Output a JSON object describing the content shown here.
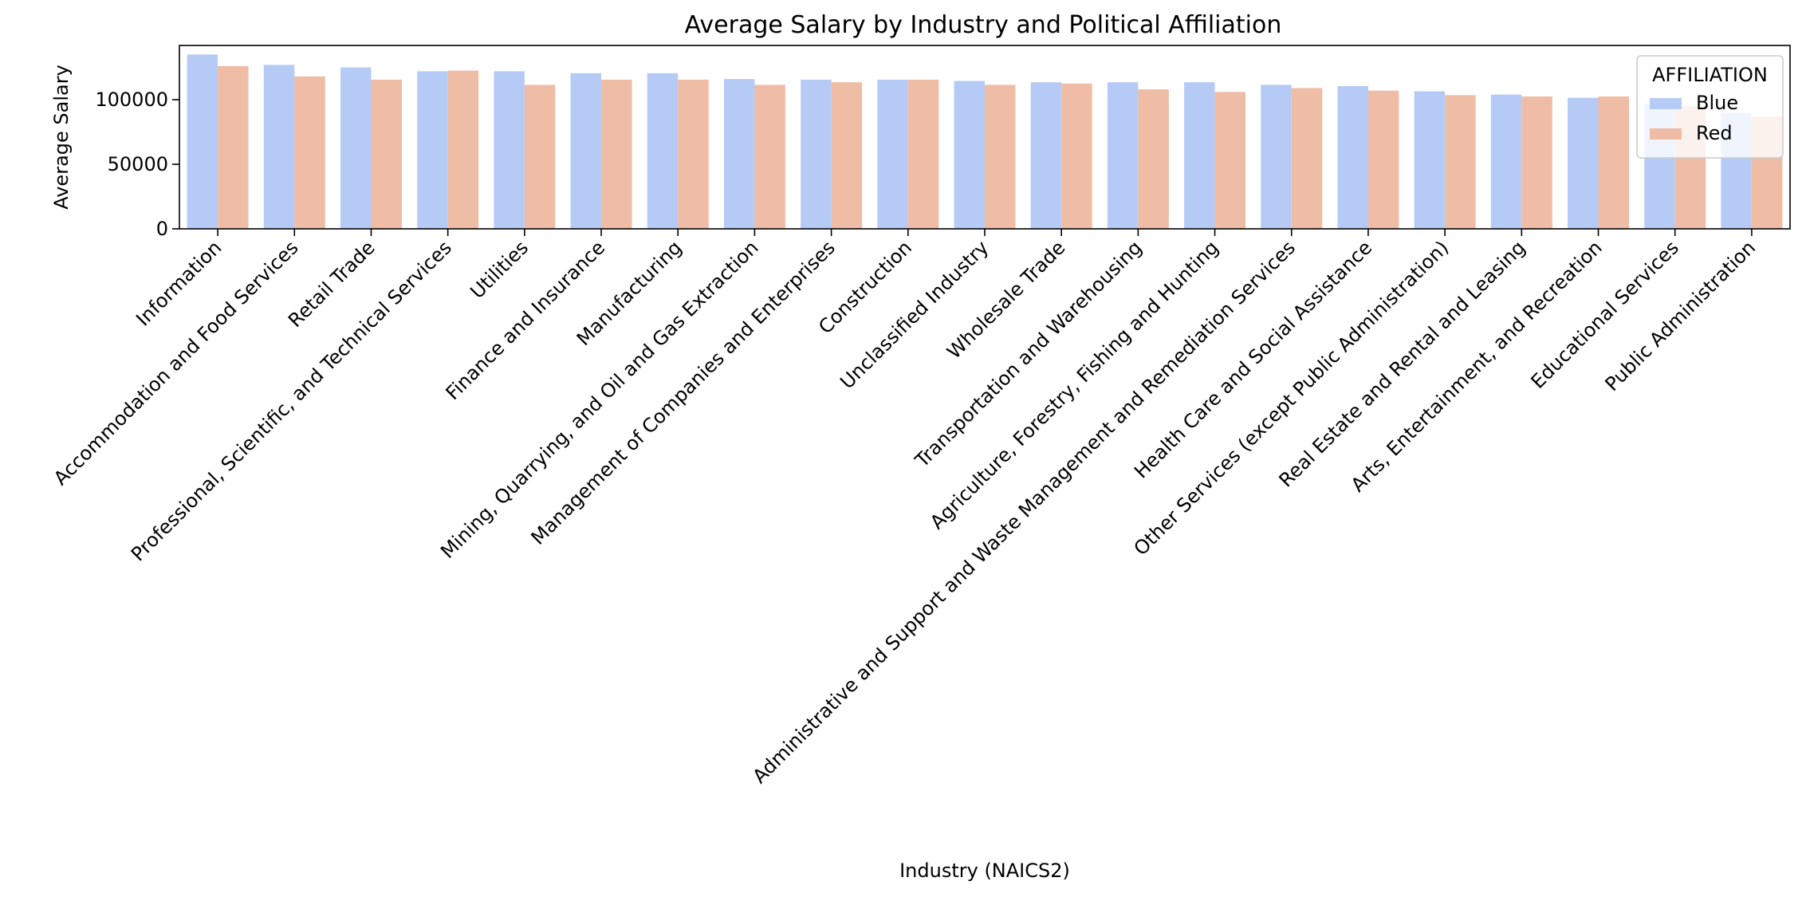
{
  "chart_data": {
    "type": "bar",
    "title": "Average Salary by Industry and Political Affiliation",
    "xlabel": "Industry (NAICS2)",
    "ylabel": "Average Salary",
    "ylim": [
      0,
      142000
    ],
    "yticks": [
      0,
      50000,
      100000
    ],
    "ytick_labels": [
      "0",
      "50000",
      "100000"
    ],
    "grid": false,
    "legend": {
      "title": "AFFILIATION",
      "position": "upper-right"
    },
    "categories": [
      "Information",
      "Accommodation and Food Services",
      "Retail Trade",
      "Professional, Scientific, and Technical Services",
      "Utilities",
      "Finance and Insurance",
      "Manufacturing",
      "Mining, Quarrying, and Oil and Gas Extraction",
      "Management of Companies and Enterprises",
      "Construction",
      "Unclassified Industry",
      "Wholesale Trade",
      "Transportation and Warehousing",
      "Agriculture, Forestry, Fishing and Hunting",
      "Administrative and Support and Waste Management and Remediation Services",
      "Health Care and Social Assistance",
      "Other Services (except Public Administration)",
      "Real Estate and Rental and Leasing",
      "Arts, Entertainment, and Recreation",
      "Educational Services",
      "Public Administration"
    ],
    "series": [
      {
        "name": "Blue",
        "color": "#b5cbf5",
        "values": [
          135000,
          127000,
          125000,
          122000,
          122000,
          120500,
          120500,
          116000,
          115500,
          115500,
          114500,
          113500,
          113500,
          113500,
          111500,
          110500,
          106500,
          104000,
          101500,
          97000,
          90000
        ]
      },
      {
        "name": "Red",
        "color": "#efbca6",
        "values": [
          126000,
          118000,
          115500,
          122500,
          111500,
          115500,
          115500,
          111500,
          113500,
          115500,
          111500,
          112500,
          108000,
          106000,
          109000,
          107000,
          103500,
          102500,
          102500,
          95000,
          87000
        ]
      }
    ]
  }
}
